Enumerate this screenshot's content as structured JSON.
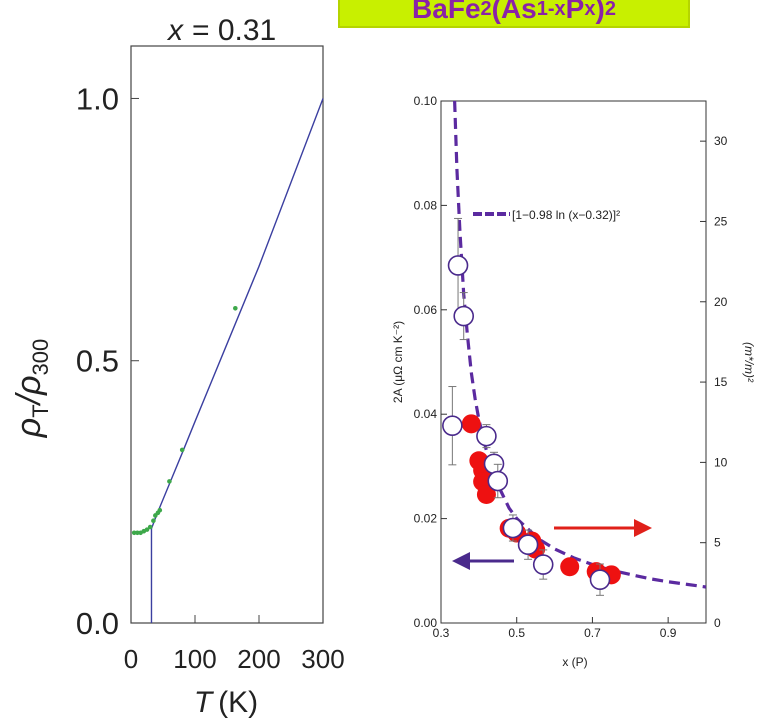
{
  "title": {
    "base": "BaFe",
    "sub1": "2",
    "mid1": "(As",
    "sub2": "1-x",
    "mid2": "P",
    "sub3": "x",
    "mid3": ")",
    "sub4": "2"
  },
  "colors": {
    "title_bg": "#c8f000",
    "title_text": "#8a22a8",
    "left_line": "#3b3fa0",
    "left_points": "#3da84a",
    "fit_curve": "#5b2aa0",
    "filled_points": "#ee1111",
    "open_points": "#4a2a8c",
    "red_arrow": "#e0201a",
    "purple_arrow": "#4a2a8c"
  },
  "chart_data": [
    {
      "type": "line",
      "annotation_x_label": "x",
      "annotation_x_eq": "= 0.31",
      "ylabel_sym": "ρ",
      "ylabel_sub1": "T",
      "ylabel_mid": "/ρ",
      "ylabel_sub2": "300",
      "xlabel_sym": "T",
      "xlabel_unit": "(K)",
      "xlim": [
        0,
        300
      ],
      "ylim": [
        0,
        1.1
      ],
      "xticks": [
        0,
        100,
        200,
        300
      ],
      "yticks": [
        0.0,
        0.5,
        1.0
      ],
      "xtick_labels": [
        "0",
        "100",
        "200",
        "300"
      ],
      "ytick_labels": [
        "0.0",
        "0.5",
        "1.0"
      ],
      "series": [
        {
          "style": "line",
          "x": [
            32,
            32,
            40,
            60,
            80,
            100,
            150,
            200,
            250,
            300
          ],
          "y": [
            0.0,
            0.18,
            0.206,
            0.265,
            0.324,
            0.384,
            0.532,
            0.68,
            0.84,
            1.0
          ]
        },
        {
          "style": "points",
          "x": [
            5,
            10,
            15,
            20,
            25,
            30,
            35,
            38,
            42,
            45,
            60,
            80,
            163
          ],
          "y": [
            0.172,
            0.172,
            0.172,
            0.175,
            0.178,
            0.183,
            0.195,
            0.205,
            0.21,
            0.215,
            0.27,
            0.33,
            0.6
          ]
        }
      ]
    },
    {
      "type": "scatter",
      "xlabel": "x (P)",
      "ylabel": "2A (μΩ cm K⁻²)",
      "y2label": "(m*/m)²",
      "xlim": [
        0.3,
        1.0
      ],
      "ylim": [
        0.0,
        0.1
      ],
      "y2lim": [
        0,
        32.5
      ],
      "xticks": [
        0.3,
        0.5,
        0.7,
        0.9
      ],
      "xtick_labels": [
        "0.3",
        "0.5",
        "0.7",
        "0.9"
      ],
      "yticks": [
        0.0,
        0.02,
        0.04,
        0.06,
        0.08,
        0.1
      ],
      "ytick_labels": [
        "0.00",
        "0.02",
        "0.04",
        "0.06",
        "0.08",
        "0.10"
      ],
      "y2ticks": [
        0,
        5,
        10,
        15,
        20,
        25,
        30
      ],
      "y2tick_labels": [
        "0",
        "5",
        "10",
        "15",
        "20",
        "25",
        "30"
      ],
      "legend_text": "[1−0.98 ln (x−0.32)]²",
      "fit_curve": {
        "x": [
          0.336,
          0.342,
          0.35,
          0.36,
          0.37,
          0.38,
          0.39,
          0.4,
          0.42,
          0.44,
          0.46,
          0.48,
          0.5,
          0.53,
          0.56,
          0.6,
          0.65,
          0.7,
          0.75,
          0.8,
          0.85,
          0.9,
          0.95,
          1.0
        ],
        "y": [
          0.1,
          0.087,
          0.075,
          0.063,
          0.055,
          0.048,
          0.043,
          0.039,
          0.033,
          0.028,
          0.025,
          0.022,
          0.02,
          0.018,
          0.016,
          0.0142,
          0.0125,
          0.0112,
          0.0101,
          0.0093,
          0.0085,
          0.0079,
          0.0074,
          0.0069
        ]
      },
      "series": [
        {
          "style": "filled",
          "axis": "right",
          "x": [
            0.38,
            0.4,
            0.41,
            0.41,
            0.42,
            0.48,
            0.5,
            0.54,
            0.55,
            0.64,
            0.71,
            0.75
          ],
          "y": [
            12.4,
            10.1,
            9.5,
            8.8,
            8.0,
            5.9,
            5.6,
            5.1,
            4.6,
            3.5,
            3.2,
            3.0
          ]
        },
        {
          "style": "open",
          "axis": "left",
          "x": [
            0.33,
            0.345,
            0.36,
            0.42,
            0.44,
            0.45,
            0.49,
            0.53,
            0.57,
            0.72
          ],
          "y": [
            0.0378,
            0.0685,
            0.0588,
            0.0358,
            0.0305,
            0.0272,
            0.0182,
            0.015,
            0.0112,
            0.0083
          ],
          "y_err": [
            0.0075,
            0.009,
            0.0045,
            0.0022,
            0.0022,
            0.0032,
            0.0025,
            0.0028,
            0.0028,
            0.003
          ]
        }
      ],
      "arrows": [
        "right",
        "left"
      ]
    }
  ]
}
